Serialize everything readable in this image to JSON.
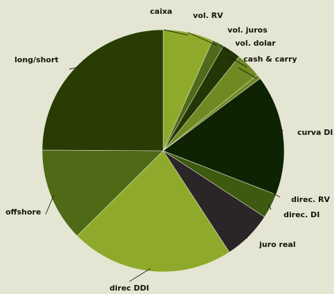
{
  "chart_data": {
    "type": "pie",
    "title": "",
    "slices": [
      {
        "label": "caixa",
        "value": 6.7,
        "color": "#8faa2a"
      },
      {
        "label": "vol. RV",
        "value": 1.6,
        "color": "#4f6a1a"
      },
      {
        "label": "vol. juros",
        "value": 2.5,
        "color": "#233706"
      },
      {
        "label": "vol. dolar",
        "value": 3.4,
        "color": "#6f8a22"
      },
      {
        "label": "cash & carry",
        "value": 0.6,
        "color": "#6f8a22"
      },
      {
        "label": "curva DI",
        "value": 16.1,
        "color": "#0e2204"
      },
      {
        "label": "direc. RV",
        "value": 0.0,
        "color": "#3d5a10"
      },
      {
        "label": "direc. DI",
        "value": 3.3,
        "color": "#3d5a10"
      },
      {
        "label": "juro real",
        "value": 6.6,
        "color": "#2a2526"
      },
      {
        "label": "direc DDI",
        "value": 21.8,
        "color": "#8faa2a"
      },
      {
        "label": "offshore",
        "value": 12.5,
        "color": "#4f6a16"
      },
      {
        "label": "long/short",
        "value": 24.9,
        "color": "#283c03"
      }
    ]
  }
}
